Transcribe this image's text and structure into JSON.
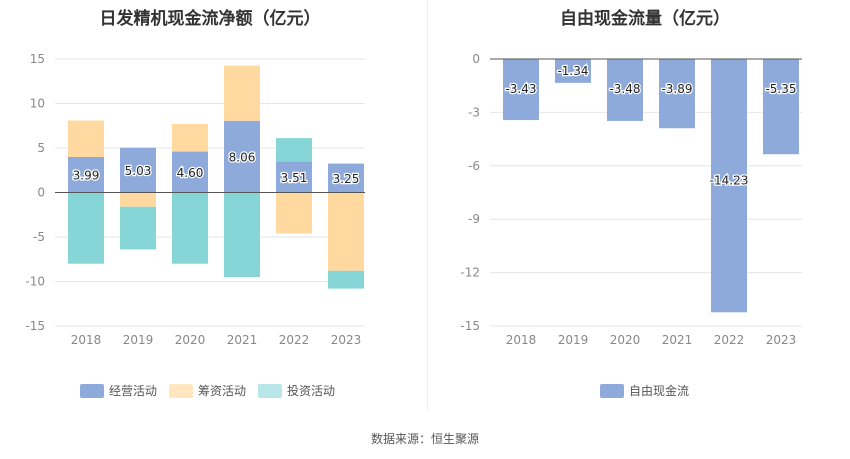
{
  "footer": {
    "source": "数据来源：恒生聚源"
  },
  "chart_data": [
    {
      "type": "bar",
      "stacked": true,
      "title": "日发精机现金流净额（亿元）",
      "categories": [
        "2018",
        "2019",
        "2020",
        "2021",
        "2022",
        "2023"
      ],
      "ylim": [
        -15,
        15
      ],
      "yticks": [
        15,
        10,
        5,
        0,
        -5,
        -10,
        -15
      ],
      "series": [
        {
          "name": "经营活动",
          "color": "#8eaadb",
          "values": [
            3.99,
            5.03,
            4.6,
            8.06,
            3.51,
            3.25
          ],
          "labels": [
            "3.99",
            "5.03",
            "4.60",
            "8.06",
            "3.51",
            "3.25"
          ]
        },
        {
          "name": "筹资活动",
          "color": "#ffd9a0",
          "values": [
            4.1,
            -1.6,
            3.1,
            6.2,
            -4.6,
            -8.8
          ]
        },
        {
          "name": "投资活动",
          "color": "#86d6d8",
          "values": [
            -8.0,
            -4.8,
            -8.0,
            -9.5,
            2.6,
            -2.0
          ]
        }
      ],
      "legend_position": "bottom"
    },
    {
      "type": "bar",
      "title": "自由现金流量（亿元）",
      "categories": [
        "2018",
        "2019",
        "2020",
        "2021",
        "2022",
        "2023"
      ],
      "ylim": [
        -15,
        0
      ],
      "yticks": [
        0,
        -3,
        -6,
        -9,
        -12,
        -15
      ],
      "series": [
        {
          "name": "自由现金流",
          "color": "#8eaadb",
          "values": [
            -3.43,
            -1.34,
            -3.48,
            -3.89,
            -14.23,
            -5.35
          ],
          "labels": [
            "-3.43",
            "-1.34",
            "-3.48",
            "-3.89",
            "-14.23",
            "-5.35"
          ]
        }
      ],
      "legend_position": "bottom"
    }
  ]
}
